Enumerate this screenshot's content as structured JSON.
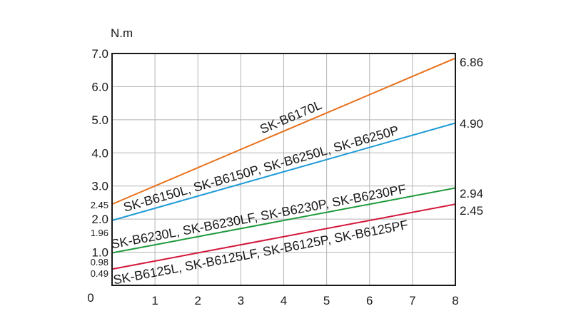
{
  "chart_data": {
    "type": "line",
    "ylabel": "N.m",
    "xlim": [
      0,
      8
    ],
    "ylim": [
      0,
      7.0
    ],
    "x_ticks": [
      "0",
      "1",
      "2",
      "3",
      "4",
      "5",
      "6",
      "7",
      "8"
    ],
    "y_ticks": [
      "1.0",
      "2.0",
      "3.0",
      "4.0",
      "5.0",
      "6.0",
      "7.0"
    ],
    "y_ticks_values": [
      1,
      2,
      3,
      4,
      5,
      6,
      7
    ],
    "grid": true,
    "series": [
      {
        "name": "SK-B6170L",
        "color": "#e8711b",
        "x": [
          0,
          8
        ],
        "y": [
          2.45,
          6.86
        ],
        "start_label": "2.45",
        "end_label": "6.86"
      },
      {
        "name": "SK-B6150L, SK-B6150P, SK-B6250L, SK-B6250P",
        "color": "#1f9bd7",
        "x": [
          0,
          8
        ],
        "y": [
          1.96,
          4.9
        ],
        "start_label": "1.96",
        "end_label": "4.90"
      },
      {
        "name": "SK-B6230L, SK-B6230LF, SK-B6230P, SK-B6230PF",
        "color": "#1e9a3c",
        "x": [
          0,
          8
        ],
        "y": [
          0.98,
          2.94
        ],
        "start_label": "0.98",
        "end_label": "2.94"
      },
      {
        "name": "SK-B6125L, SK-B6125LF, SK-B6125P, SK-B6125PF",
        "color": "#d3173a",
        "x": [
          0,
          8
        ],
        "y": [
          0.49,
          2.45
        ],
        "start_label": "0.49",
        "end_label": "2.45"
      }
    ]
  }
}
